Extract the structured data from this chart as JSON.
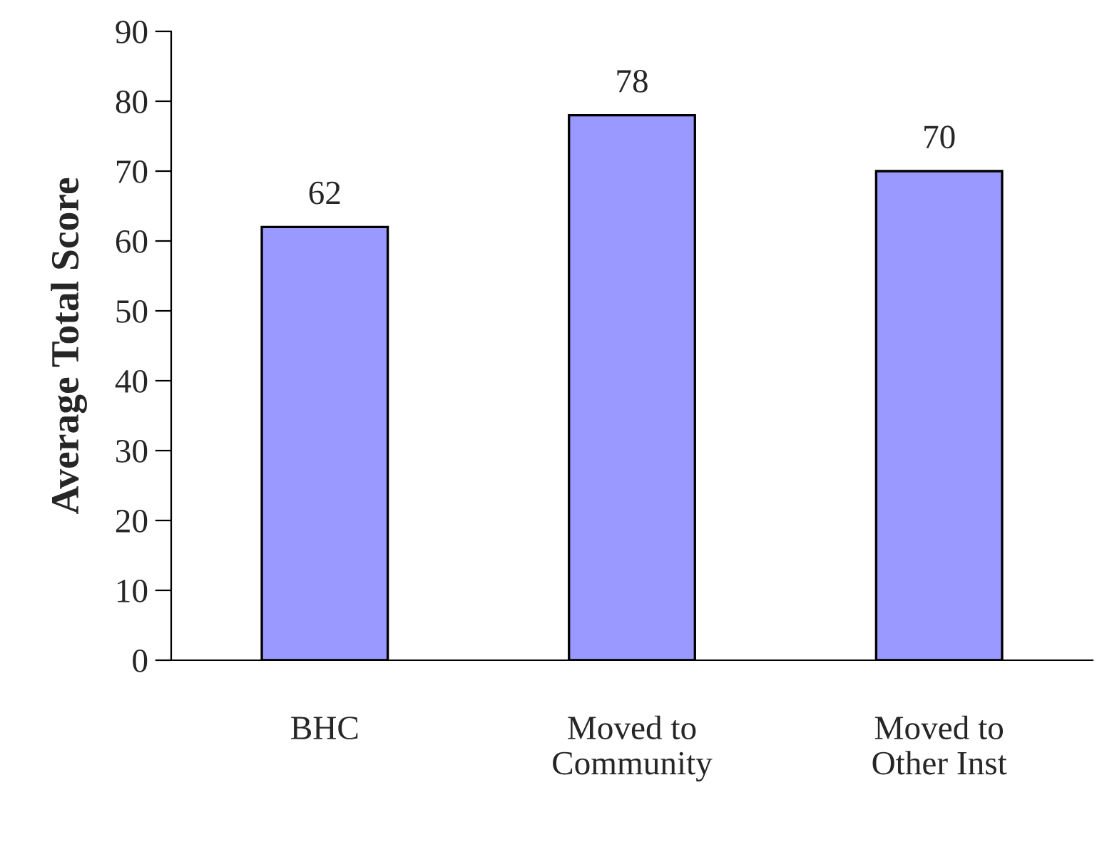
{
  "chart_data": {
    "type": "bar",
    "ylabel": "Average Total Score",
    "categories": [
      "BHC",
      "Moved to\nCommunity",
      "Moved to\nOther Inst"
    ],
    "values": [
      62,
      78,
      70
    ],
    "color": "#9999ff",
    "ylim": [
      0,
      90
    ],
    "yticks": [
      0,
      10,
      20,
      30,
      40,
      50,
      60,
      70,
      80,
      90
    ],
    "data_labels": true,
    "grid": false,
    "legend": false
  }
}
